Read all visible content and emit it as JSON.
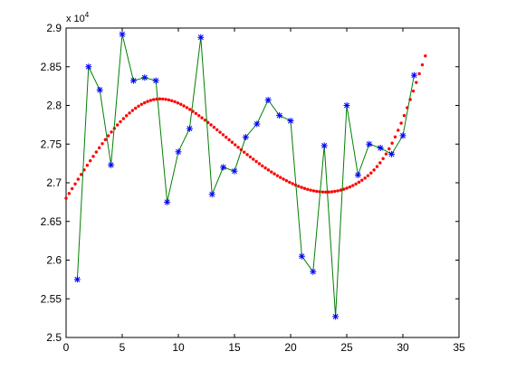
{
  "chart_data": {
    "type": "line",
    "title": "",
    "xlabel": "",
    "ylabel": "",
    "y_multiplier_label": "x 10",
    "y_multiplier_exponent": "4",
    "xlim": [
      0,
      35
    ],
    "ylim": [
      2.5,
      2.9
    ],
    "x_ticks": [
      0,
      5,
      10,
      15,
      20,
      25,
      30,
      35
    ],
    "y_ticks": [
      2.5,
      2.55,
      2.6,
      2.65,
      2.7,
      2.75,
      2.8,
      2.85,
      2.9
    ],
    "grid": false,
    "legend": "none",
    "series": [
      {
        "style": "line-with-star-markers",
        "line_color": "#008000",
        "marker_color": "#0000ff",
        "x": [
          1,
          2,
          3,
          4,
          5,
          6,
          7,
          8,
          9,
          10,
          11,
          12,
          13,
          14,
          15,
          16,
          17,
          18,
          19,
          20,
          21,
          22,
          23,
          24,
          25,
          26,
          27,
          28,
          29,
          30,
          31
        ],
        "y": [
          2.575,
          2.85,
          2.82,
          2.723,
          2.892,
          2.832,
          2.836,
          2.832,
          2.675,
          2.74,
          2.77,
          2.888,
          2.685,
          2.72,
          2.715,
          2.759,
          2.776,
          2.807,
          2.787,
          2.78,
          2.605,
          2.585,
          2.748,
          2.527,
          2.8,
          2.71,
          2.75,
          2.745,
          2.737,
          2.761,
          2.839
        ]
      },
      {
        "style": "dotted-fit",
        "color": "#ff0000",
        "x_range": [
          0,
          32
        ],
        "points": 120,
        "knots_x": [
          0,
          4,
          8,
          12,
          16,
          20,
          23,
          26,
          29,
          32
        ],
        "knots_y": [
          2.68,
          2.765,
          2.808,
          2.785,
          2.738,
          2.7,
          2.688,
          2.7,
          2.75,
          2.864
        ]
      }
    ]
  }
}
